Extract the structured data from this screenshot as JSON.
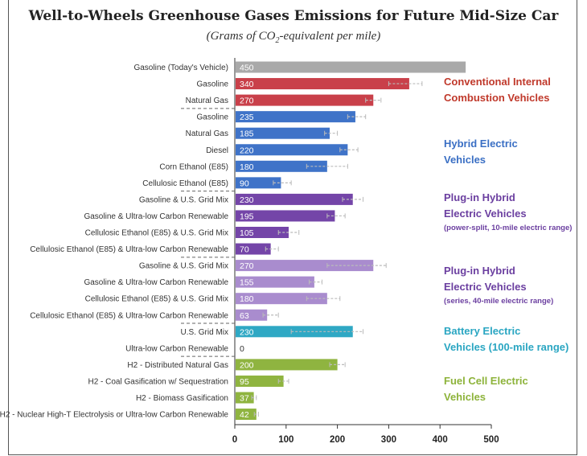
{
  "title": "Well-to-Wheels Greenhouse Gases Emissions for Future Mid-Size Car",
  "subtitle_pre": "(Grams of CO",
  "subtitle_sub": "2",
  "subtitle_post": "-equivalent per mile)",
  "groups": [
    {
      "line1": "Conventional Internal",
      "line2": "Combustion Vehicles",
      "sub": "",
      "color": "#c0392b"
    },
    {
      "line1": "Hybrid Electric",
      "line2": "Vehicles",
      "sub": "",
      "color": "#3a6fc4"
    },
    {
      "line1": "Plug-in Hybrid",
      "line2": "Electric Vehicles",
      "sub": "(power-split, 10-mile electric range)",
      "color": "#6b3fa0"
    },
    {
      "line1": "Plug-in Hybrid",
      "line2": "Electric Vehicles",
      "sub": "(series, 40-mile electric range)",
      "color": "#6b3fa0"
    },
    {
      "line1": "Battery Electric",
      "line2": "Vehicles (100-mile range)",
      "sub": "",
      "color": "#2aa6c2"
    },
    {
      "line1": "Fuel Cell Electric",
      "line2": "Vehicles",
      "sub": "",
      "color": "#8db33a"
    }
  ],
  "chart_data": {
    "type": "bar",
    "orientation": "horizontal",
    "title": "Well-to-Wheels Greenhouse Gases Emissions for Future Mid-Size Car",
    "subtitle": "(Grams of CO2-equivalent per mile)",
    "xlim": [
      0,
      500
    ],
    "x_ticks": [
      0,
      100,
      200,
      300,
      400,
      500
    ],
    "grid": false,
    "categories": [
      "Gasoline (Today's Vehicle)",
      "Gasoline",
      "Natural Gas",
      "Gasoline",
      "Natural Gas",
      "Diesel",
      "Corn Ethanol (E85)",
      "Cellulosic Ethanol (E85)",
      "Gasoline & U.S. Grid Mix",
      "Gasoline & Ultra-low Carbon Renewable",
      "Cellulosic Ethanol (E85) & U.S. Grid Mix",
      "Cellulosic Ethanol (E85) & Ultra-low Carbon Renewable",
      "Gasoline & U.S. Grid Mix",
      "Gasoline & Ultra-low Carbon Renewable",
      "Cellulosic Ethanol (E85) & U.S. Grid Mix",
      "Cellulosic Ethanol (E85) & Ultra-low Carbon Renewable",
      "U.S. Grid Mix",
      "Ultra-low Carbon Renewable",
      "H2 - Distributed Natural Gas",
      "H2 - Coal Gasification w/ Sequestration",
      "H2 - Biomass Gasification",
      "H2 - Nuclear High-T Electrolysis or Ultra-low Carbon Renewable"
    ],
    "values": [
      450,
      340,
      270,
      235,
      185,
      220,
      180,
      90,
      230,
      195,
      105,
      70,
      270,
      155,
      180,
      63,
      230,
      0,
      200,
      95,
      37,
      42
    ],
    "value_labels": [
      "450",
      "340",
      "270",
      "235",
      "185",
      "220",
      "180",
      "90",
      "230",
      "195",
      "105",
      "70",
      "270",
      "155",
      "180",
      "63",
      "230",
      "0",
      "200",
      "95",
      "37",
      "42"
    ],
    "error_low": [
      450,
      300,
      255,
      220,
      175,
      205,
      140,
      75,
      210,
      180,
      85,
      60,
      180,
      145,
      140,
      55,
      110,
      0,
      185,
      85,
      33,
      38
    ],
    "error_high": [
      450,
      365,
      285,
      255,
      200,
      240,
      220,
      110,
      250,
      215,
      125,
      85,
      295,
      170,
      205,
      85,
      250,
      0,
      215,
      105,
      42,
      46
    ],
    "bar_colors": [
      "#a9a9a9",
      "#c9404a",
      "#c9404a",
      "#3f73c8",
      "#3f73c8",
      "#3f73c8",
      "#3f73c8",
      "#3f73c8",
      "#7445a8",
      "#7445a8",
      "#7445a8",
      "#7445a8",
      "#a98cce",
      "#a98cce",
      "#a98cce",
      "#a98cce",
      "#2fa8c4",
      "#2fa8c4",
      "#8fb440",
      "#8fb440",
      "#8fb440",
      "#8fb440"
    ],
    "group_ranges": [
      [
        0,
        2
      ],
      [
        3,
        7
      ],
      [
        8,
        11
      ],
      [
        12,
        15
      ],
      [
        16,
        17
      ],
      [
        18,
        21
      ]
    ]
  }
}
